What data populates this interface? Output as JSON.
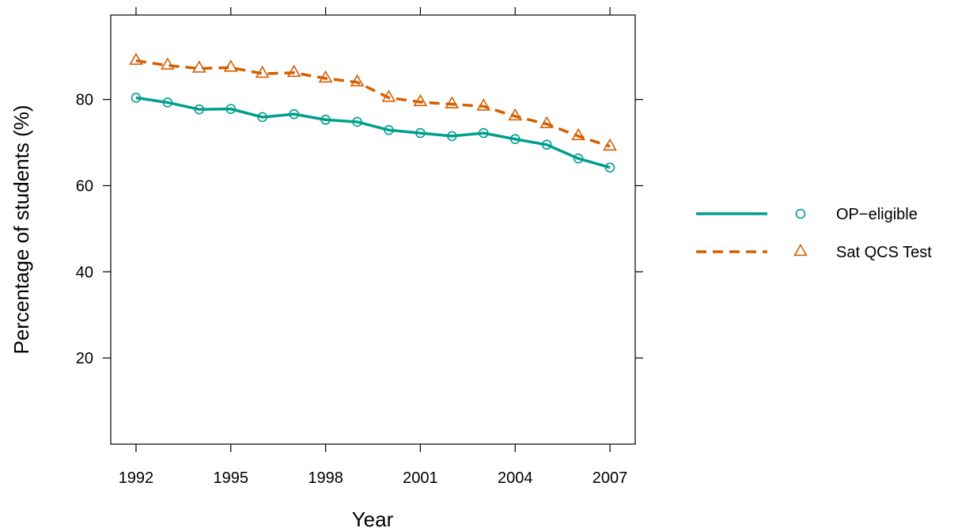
{
  "chart_data": {
    "type": "line",
    "xlabel": "Year",
    "ylabel": "Percentage of students (%)",
    "xlim": [
      1991.2,
      2007.8
    ],
    "ylim": [
      0,
      99.6
    ],
    "x_ticks": [
      1992,
      1995,
      1998,
      2001,
      2004,
      2007
    ],
    "y_ticks": [
      20,
      40,
      60,
      80
    ],
    "x": [
      1992,
      1993,
      1994,
      1995,
      1996,
      1997,
      1998,
      1999,
      2000,
      2001,
      2002,
      2003,
      2004,
      2005,
      2006,
      2007
    ],
    "series": [
      {
        "name": "OP−eligible",
        "color": "#009E8F",
        "line_style": "solid",
        "marker": "circle",
        "values": [
          80.4,
          79.3,
          77.7,
          77.8,
          75.9,
          76.6,
          75.3,
          74.8,
          72.9,
          72.2,
          71.5,
          72.2,
          70.8,
          69.5,
          66.3,
          64.2
        ]
      },
      {
        "name": "Sat QCS Test",
        "color": "#D55E00",
        "line_style": "dashed",
        "marker": "triangle",
        "values": [
          89.0,
          87.9,
          87.2,
          87.4,
          86.0,
          86.2,
          84.9,
          84.0,
          80.4,
          79.4,
          78.9,
          78.4,
          76.1,
          74.3,
          71.5,
          69.1
        ]
      }
    ],
    "grid": false,
    "legend_position": "right"
  }
}
